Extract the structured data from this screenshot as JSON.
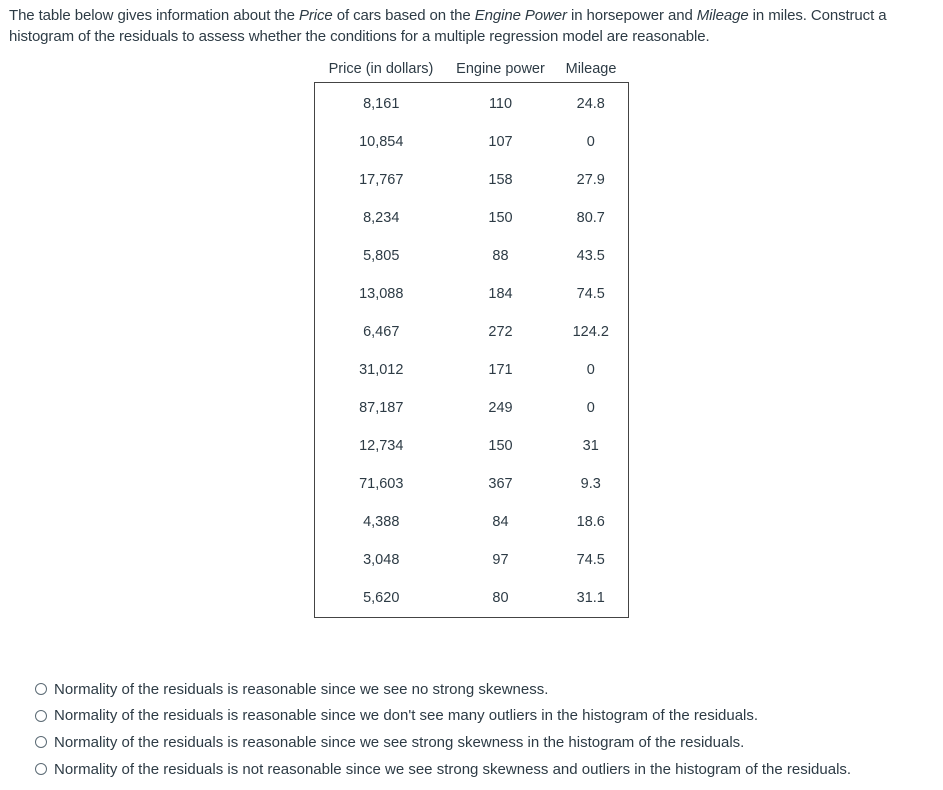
{
  "question": {
    "part1": "The table below gives information about the ",
    "em1": "Price",
    "part2": " of cars based on the ",
    "em2": "Engine Power",
    "part3": " in horsepower and ",
    "em3": "Mileage",
    "part4": " in miles. Construct a histogram of the residuals to assess whether the conditions for a multiple regression model are reasonable."
  },
  "table": {
    "headers": [
      "Price (in dollars)",
      "Engine power",
      "Mileage"
    ],
    "rows": [
      [
        "8,161",
        "110",
        "24.8"
      ],
      [
        "10,854",
        "107",
        "0"
      ],
      [
        "17,767",
        "158",
        "27.9"
      ],
      [
        "8,234",
        "150",
        "80.7"
      ],
      [
        "5,805",
        "88",
        "43.5"
      ],
      [
        "13,088",
        "184",
        "74.5"
      ],
      [
        "6,467",
        "272",
        "124.2"
      ],
      [
        "31,012",
        "171",
        "0"
      ],
      [
        "87,187",
        "249",
        "0"
      ],
      [
        "12,734",
        "150",
        "31"
      ],
      [
        "71,603",
        "367",
        "9.3"
      ],
      [
        "4,388",
        "84",
        "18.6"
      ],
      [
        "3,048",
        "97",
        "74.5"
      ],
      [
        "5,620",
        "80",
        "31.1"
      ]
    ]
  },
  "options": [
    "Normality of the residuals is reasonable since we see no strong skewness.",
    "Normality of the residuals is reasonable since we don't see many outliers in the histogram of the residuals.",
    "Normality of the residuals is reasonable since we see strong skewness in the histogram of the residuals.",
    "Normality of the residuals is not reasonable since we see strong skewness and outliers in the histogram of the residuals."
  ]
}
